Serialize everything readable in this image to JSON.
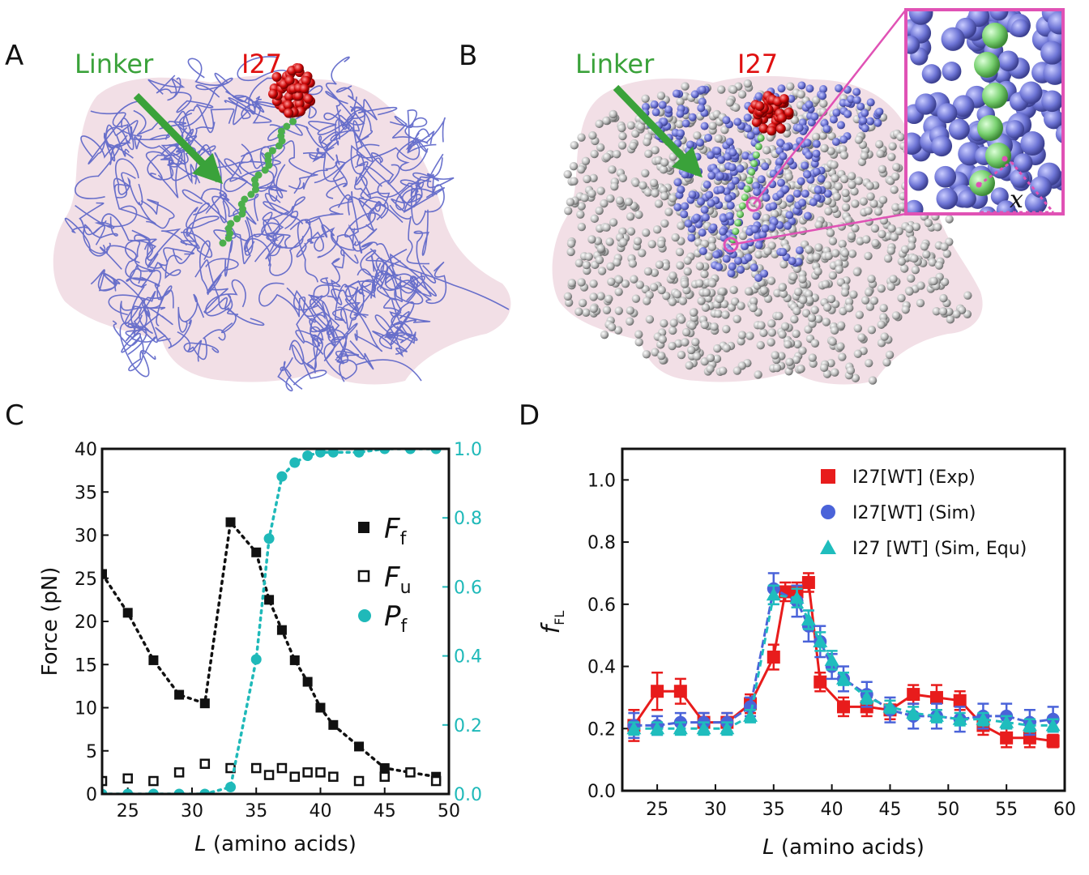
{
  "panels": {
    "A": {
      "letter": "A",
      "linker_label": "Linker",
      "domain_label": "I27"
    },
    "B": {
      "letter": "B",
      "linker_label": "Linker",
      "domain_label": "I27",
      "inset_var": "x"
    },
    "C": {
      "letter": "C"
    },
    "D": {
      "letter": "D"
    }
  },
  "colors": {
    "rna_blue": "#5a63c8",
    "sphere_gray": "#b4b4b4",
    "surface_pink": "#f2dfe6",
    "linker_green": "#4caf4c",
    "domain_red": "#d10a0a",
    "inset_pink": "#e052b5",
    "cyan": "#1fb9b9"
  },
  "chart_data": [
    {
      "type": "scatter",
      "panel": "C",
      "xlabel_var": "L",
      "xlabel_rest": " (amino acids)",
      "ylabel": "Force (pN)",
      "xlim": [
        23,
        50
      ],
      "ylim": [
        0,
        40
      ],
      "xticks": [
        25,
        30,
        35,
        40,
        45,
        50
      ],
      "yticks": [
        0,
        5,
        10,
        15,
        20,
        25,
        30,
        35,
        40
      ],
      "y2lim": [
        0,
        1.0
      ],
      "y2ticks": [
        0.0,
        0.2,
        0.4,
        0.6,
        0.8,
        1.0
      ],
      "y2tick_labels": [
        "0.0",
        "0.2",
        "0.4",
        "0.6",
        "0.8",
        "1.0"
      ],
      "series": [
        {
          "name": "F",
          "sub": "f",
          "marker": "square-filled",
          "axis": "left",
          "x": [
            23,
            25,
            27,
            29,
            31,
            33,
            35,
            36,
            37,
            38,
            39,
            40,
            41,
            43,
            45,
            47,
            49
          ],
          "y": [
            25.5,
            21,
            15.5,
            11.5,
            10.5,
            31.5,
            28,
            22.5,
            19,
            15.5,
            13,
            10,
            8,
            5.5,
            3,
            2.5,
            2
          ]
        },
        {
          "name": "F",
          "sub": "u",
          "marker": "square-open",
          "axis": "left",
          "x": [
            23,
            25,
            27,
            29,
            31,
            33,
            35,
            36,
            37,
            38,
            39,
            40,
            41,
            43,
            45,
            47,
            49
          ],
          "y": [
            1.5,
            1.8,
            1.5,
            2.5,
            3.5,
            3,
            3,
            2.2,
            3,
            2,
            2.5,
            2.5,
            2,
            1.5,
            2,
            2.5,
            1.5
          ]
        },
        {
          "name": "P",
          "sub": "f",
          "marker": "circle",
          "axis": "right",
          "x": [
            23,
            25,
            27,
            29,
            31,
            33,
            35,
            36,
            37,
            38,
            39,
            40,
            41,
            43,
            45,
            47,
            49
          ],
          "y": [
            0.0,
            0.0,
            0.0,
            0.0,
            0.0,
            0.02,
            0.39,
            0.74,
            0.92,
            0.96,
            0.98,
            0.99,
            0.99,
            0.99,
            1.0,
            1.0,
            1.0
          ]
        }
      ]
    },
    {
      "type": "line",
      "panel": "D",
      "xlabel_var": "L",
      "xlabel_rest": " (amino acids)",
      "ylabel_var": "f",
      "ylabel_sub": "FL",
      "xlim": [
        22,
        60
      ],
      "ylim": [
        0,
        1.1
      ],
      "xticks": [
        25,
        30,
        35,
        40,
        45,
        50,
        55,
        60
      ],
      "yticks": [
        0.0,
        0.2,
        0.4,
        0.6,
        0.8,
        1.0
      ],
      "ytick_labels": [
        "0.0",
        "0.2",
        "0.4",
        "0.6",
        "0.8",
        "1.0"
      ],
      "legend_position": "top-right",
      "series": [
        {
          "name": "I27[WT] (Exp)",
          "color": "#e81c1c",
          "marker": "square",
          "x": [
            23,
            25,
            27,
            29,
            31,
            33,
            35,
            36,
            37,
            38,
            39,
            41,
            43,
            45,
            47,
            49,
            51,
            53,
            55,
            57,
            59
          ],
          "y": [
            0.21,
            0.32,
            0.32,
            0.22,
            0.22,
            0.28,
            0.43,
            0.64,
            0.64,
            0.67,
            0.35,
            0.27,
            0.27,
            0.26,
            0.31,
            0.3,
            0.29,
            0.21,
            0.17,
            0.17,
            0.16
          ],
          "err": [
            0.05,
            0.06,
            0.04,
            0.03,
            0.03,
            0.03,
            0.04,
            0.03,
            0.03,
            0.03,
            0.03,
            0.03,
            0.03,
            0.03,
            0.03,
            0.04,
            0.03,
            0.03,
            0.03,
            0.03,
            0.02
          ]
        },
        {
          "name": "I27[WT] (Sim)",
          "color": "#4a63d9",
          "marker": "circle",
          "x": [
            23,
            25,
            27,
            29,
            31,
            33,
            35,
            37,
            38,
            39,
            40,
            41,
            43,
            45,
            47,
            49,
            51,
            53,
            55,
            57,
            59
          ],
          "y": [
            0.21,
            0.21,
            0.22,
            0.22,
            0.22,
            0.27,
            0.65,
            0.61,
            0.53,
            0.48,
            0.4,
            0.36,
            0.31,
            0.26,
            0.24,
            0.24,
            0.23,
            0.24,
            0.24,
            0.22,
            0.23
          ],
          "err": [
            0.04,
            0.03,
            0.03,
            0.03,
            0.03,
            0.03,
            0.05,
            0.05,
            0.05,
            0.05,
            0.04,
            0.04,
            0.04,
            0.04,
            0.04,
            0.04,
            0.04,
            0.04,
            0.04,
            0.04,
            0.04
          ]
        },
        {
          "name": "I27 [WT] (Sim, Equ)",
          "color": "#1fbdbd",
          "marker": "triangle",
          "x": [
            23,
            25,
            27,
            29,
            31,
            33,
            35,
            37,
            38,
            39,
            40,
            41,
            43,
            45,
            47,
            49,
            51,
            53,
            55,
            57,
            59
          ],
          "y": [
            0.2,
            0.2,
            0.2,
            0.2,
            0.2,
            0.24,
            0.63,
            0.62,
            0.55,
            0.48,
            0.42,
            0.36,
            0.3,
            0.27,
            0.25,
            0.24,
            0.23,
            0.23,
            0.22,
            0.21,
            0.21
          ],
          "err": [
            0.02,
            0.02,
            0.02,
            0.02,
            0.02,
            0.02,
            0.03,
            0.03,
            0.03,
            0.03,
            0.03,
            0.02,
            0.02,
            0.02,
            0.02,
            0.02,
            0.02,
            0.02,
            0.02,
            0.02,
            0.02
          ]
        }
      ]
    }
  ]
}
